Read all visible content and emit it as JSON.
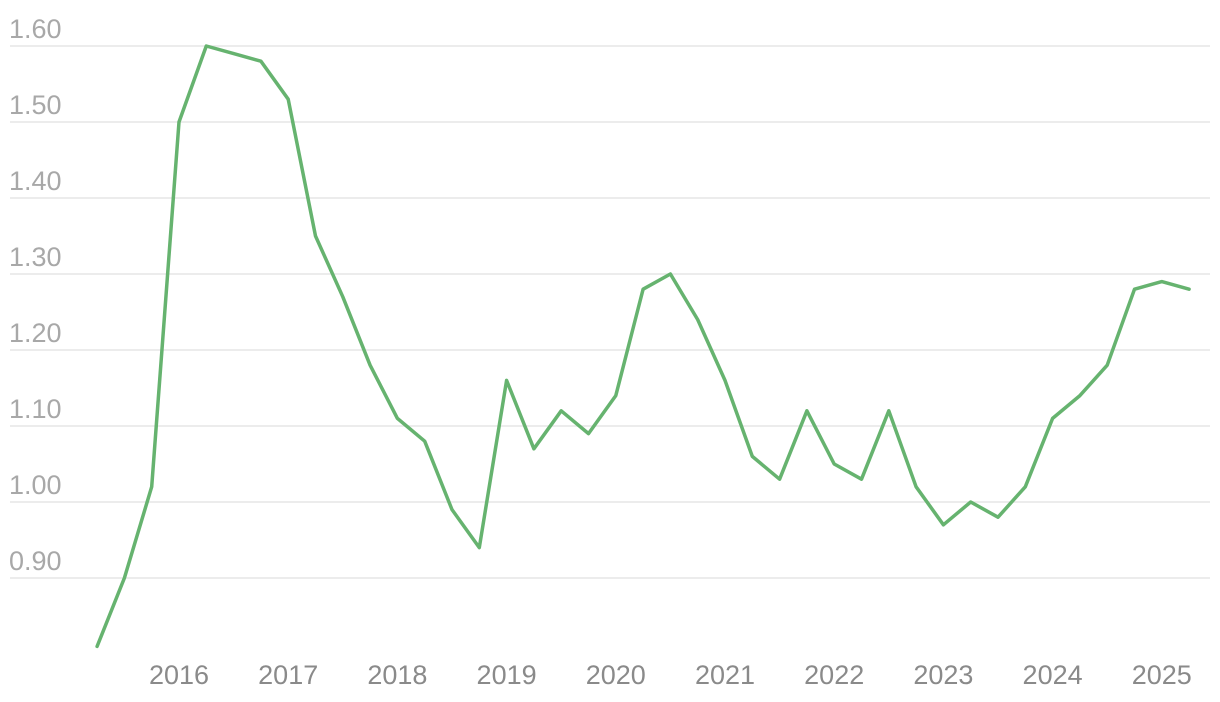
{
  "chart_data": {
    "type": "line",
    "title": "",
    "xlabel": "",
    "ylabel": "",
    "x_ticks": [
      "2016",
      "2017",
      "2018",
      "2019",
      "2020",
      "2021",
      "2022",
      "2023",
      "2024",
      "2025"
    ],
    "y_ticks": [
      "0.90",
      "1.00",
      "1.10",
      "1.20",
      "1.30",
      "1.40",
      "1.50",
      "1.60"
    ],
    "ylim": [
      0.8,
      1.6
    ],
    "grid": true,
    "legend": "none",
    "colors": {
      "line": "#66b36f",
      "grid": "#e6e6e6",
      "y_tick": "#a8a8a8",
      "x_tick": "#8a8a8a"
    },
    "series": [
      {
        "x": [
          "2015-04",
          "2015-07",
          "2015-10",
          "2016-01",
          "2016-04",
          "2016-07",
          "2016-10",
          "2017-01",
          "2017-04",
          "2017-07",
          "2017-10",
          "2018-01",
          "2018-04",
          "2018-07",
          "2018-10",
          "2019-01",
          "2019-04",
          "2019-07",
          "2019-10",
          "2020-01",
          "2020-04",
          "2020-07",
          "2020-10",
          "2021-01",
          "2021-04",
          "2021-07",
          "2021-10",
          "2022-01",
          "2022-04",
          "2022-07",
          "2022-10",
          "2023-01",
          "2023-04",
          "2023-07",
          "2023-10",
          "2024-01",
          "2024-04",
          "2024-07",
          "2024-10",
          "2025-01",
          "2025-04"
        ],
        "values": [
          0.81,
          0.9,
          1.02,
          1.5,
          1.6,
          1.59,
          1.58,
          1.53,
          1.35,
          1.27,
          1.18,
          1.11,
          1.08,
          0.99,
          0.94,
          1.16,
          1.07,
          1.12,
          1.09,
          1.14,
          1.28,
          1.3,
          1.24,
          1.16,
          1.06,
          1.03,
          1.12,
          1.05,
          1.03,
          1.12,
          1.02,
          0.97,
          1.0,
          0.98,
          1.02,
          1.11,
          1.14,
          1.18,
          1.28,
          1.29,
          1.28
        ]
      }
    ]
  }
}
